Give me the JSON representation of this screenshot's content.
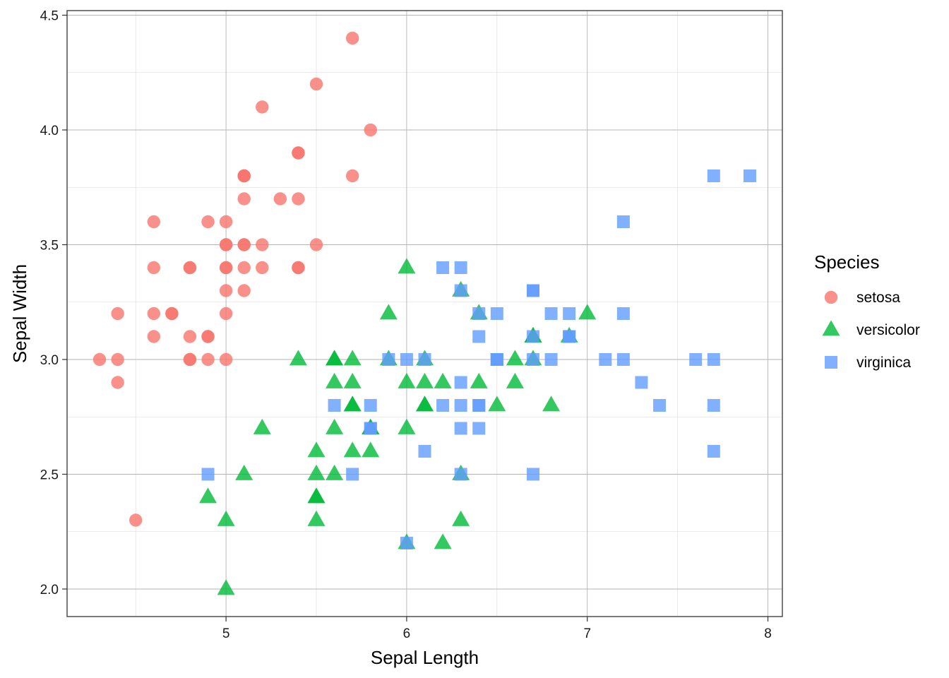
{
  "chart_data": {
    "type": "scatter",
    "title": "",
    "xlabel": "Sepal Length",
    "ylabel": "Sepal Width",
    "xlim": [
      4.12,
      8.08
    ],
    "ylim": [
      1.88,
      4.52
    ],
    "x_ticks": [
      5,
      6,
      7,
      8
    ],
    "x_tick_labels": [
      "5",
      "6",
      "7",
      "8"
    ],
    "y_ticks": [
      2.0,
      2.5,
      3.0,
      3.5,
      4.0,
      4.5
    ],
    "y_tick_labels": [
      "2.0",
      "2.5",
      "3.0",
      "3.5",
      "4.0",
      "4.5"
    ],
    "grid": true,
    "legend_title": "Species",
    "legend_position": "right",
    "series": [
      {
        "name": "setosa",
        "marker": "circle",
        "color": "#F8766D",
        "points": [
          [
            5.1,
            3.5
          ],
          [
            4.9,
            3.0
          ],
          [
            4.7,
            3.2
          ],
          [
            4.6,
            3.1
          ],
          [
            5.0,
            3.6
          ],
          [
            5.4,
            3.9
          ],
          [
            4.6,
            3.4
          ],
          [
            5.0,
            3.4
          ],
          [
            4.4,
            2.9
          ],
          [
            4.9,
            3.1
          ],
          [
            5.4,
            3.7
          ],
          [
            4.8,
            3.4
          ],
          [
            4.8,
            3.0
          ],
          [
            4.3,
            3.0
          ],
          [
            5.8,
            4.0
          ],
          [
            5.7,
            4.4
          ],
          [
            5.4,
            3.9
          ],
          [
            5.1,
            3.5
          ],
          [
            5.7,
            3.8
          ],
          [
            5.1,
            3.8
          ],
          [
            5.4,
            3.4
          ],
          [
            5.1,
            3.7
          ],
          [
            4.6,
            3.6
          ],
          [
            5.1,
            3.3
          ],
          [
            4.8,
            3.4
          ],
          [
            5.0,
            3.0
          ],
          [
            5.0,
            3.4
          ],
          [
            5.2,
            3.5
          ],
          [
            5.2,
            3.4
          ],
          [
            4.7,
            3.2
          ],
          [
            4.8,
            3.1
          ],
          [
            5.4,
            3.4
          ],
          [
            5.2,
            4.1
          ],
          [
            5.5,
            4.2
          ],
          [
            4.9,
            3.1
          ],
          [
            5.0,
            3.2
          ],
          [
            5.5,
            3.5
          ],
          [
            4.9,
            3.6
          ],
          [
            4.4,
            3.0
          ],
          [
            5.1,
            3.4
          ],
          [
            5.0,
            3.5
          ],
          [
            4.5,
            2.3
          ],
          [
            4.4,
            3.2
          ],
          [
            5.0,
            3.5
          ],
          [
            5.1,
            3.8
          ],
          [
            4.8,
            3.0
          ],
          [
            5.1,
            3.8
          ],
          [
            4.6,
            3.2
          ],
          [
            5.3,
            3.7
          ],
          [
            5.0,
            3.3
          ]
        ]
      },
      {
        "name": "versicolor",
        "marker": "triangle",
        "color": "#00BA38",
        "points": [
          [
            7.0,
            3.2
          ],
          [
            6.4,
            3.2
          ],
          [
            6.9,
            3.1
          ],
          [
            5.5,
            2.3
          ],
          [
            6.5,
            2.8
          ],
          [
            5.7,
            2.8
          ],
          [
            6.3,
            3.3
          ],
          [
            4.9,
            2.4
          ],
          [
            6.6,
            2.9
          ],
          [
            5.2,
            2.7
          ],
          [
            5.0,
            2.0
          ],
          [
            5.9,
            3.0
          ],
          [
            6.0,
            2.2
          ],
          [
            6.1,
            2.9
          ],
          [
            5.6,
            2.9
          ],
          [
            6.7,
            3.1
          ],
          [
            5.6,
            3.0
          ],
          [
            5.8,
            2.7
          ],
          [
            6.2,
            2.2
          ],
          [
            5.6,
            2.5
          ],
          [
            5.9,
            3.2
          ],
          [
            6.1,
            2.8
          ],
          [
            6.3,
            2.5
          ],
          [
            6.1,
            2.8
          ],
          [
            6.4,
            2.9
          ],
          [
            6.6,
            3.0
          ],
          [
            6.8,
            2.8
          ],
          [
            6.7,
            3.0
          ],
          [
            6.0,
            2.9
          ],
          [
            5.7,
            2.6
          ],
          [
            5.5,
            2.4
          ],
          [
            5.5,
            2.4
          ],
          [
            5.8,
            2.7
          ],
          [
            6.0,
            2.7
          ],
          [
            5.4,
            3.0
          ],
          [
            6.0,
            3.4
          ],
          [
            6.7,
            3.1
          ],
          [
            6.3,
            2.3
          ],
          [
            5.6,
            3.0
          ],
          [
            5.5,
            2.5
          ],
          [
            5.5,
            2.6
          ],
          [
            6.1,
            3.0
          ],
          [
            5.8,
            2.6
          ],
          [
            5.0,
            2.3
          ],
          [
            5.6,
            2.7
          ],
          [
            5.7,
            3.0
          ],
          [
            5.7,
            2.9
          ],
          [
            6.2,
            2.9
          ],
          [
            5.1,
            2.5
          ],
          [
            5.7,
            2.8
          ]
        ]
      },
      {
        "name": "virginica",
        "marker": "square",
        "color": "#619CFF",
        "points": [
          [
            6.3,
            3.3
          ],
          [
            5.8,
            2.7
          ],
          [
            7.1,
            3.0
          ],
          [
            6.3,
            2.9
          ],
          [
            6.5,
            3.0
          ],
          [
            7.6,
            3.0
          ],
          [
            4.9,
            2.5
          ],
          [
            7.3,
            2.9
          ],
          [
            6.7,
            2.5
          ],
          [
            7.2,
            3.6
          ],
          [
            6.5,
            3.2
          ],
          [
            6.4,
            2.7
          ],
          [
            6.8,
            3.0
          ],
          [
            5.7,
            2.5
          ],
          [
            5.8,
            2.8
          ],
          [
            6.4,
            3.2
          ],
          [
            6.5,
            3.0
          ],
          [
            7.7,
            3.8
          ],
          [
            7.7,
            2.6
          ],
          [
            6.0,
            2.2
          ],
          [
            6.9,
            3.2
          ],
          [
            5.6,
            2.8
          ],
          [
            7.7,
            2.8
          ],
          [
            6.3,
            2.7
          ],
          [
            6.7,
            3.3
          ],
          [
            7.2,
            3.2
          ],
          [
            6.2,
            2.8
          ],
          [
            6.1,
            3.0
          ],
          [
            6.4,
            2.8
          ],
          [
            7.2,
            3.0
          ],
          [
            7.4,
            2.8
          ],
          [
            7.9,
            3.8
          ],
          [
            6.4,
            2.8
          ],
          [
            6.3,
            2.8
          ],
          [
            6.1,
            2.6
          ],
          [
            7.7,
            3.0
          ],
          [
            6.3,
            3.4
          ],
          [
            6.4,
            3.1
          ],
          [
            6.0,
            3.0
          ],
          [
            6.9,
            3.1
          ],
          [
            6.7,
            3.1
          ],
          [
            6.9,
            3.1
          ],
          [
            5.8,
            2.7
          ],
          [
            6.8,
            3.2
          ],
          [
            6.7,
            3.3
          ],
          [
            6.7,
            3.0
          ],
          [
            6.3,
            2.5
          ],
          [
            6.5,
            3.0
          ],
          [
            6.2,
            3.4
          ],
          [
            5.9,
            3.0
          ]
        ]
      }
    ]
  }
}
